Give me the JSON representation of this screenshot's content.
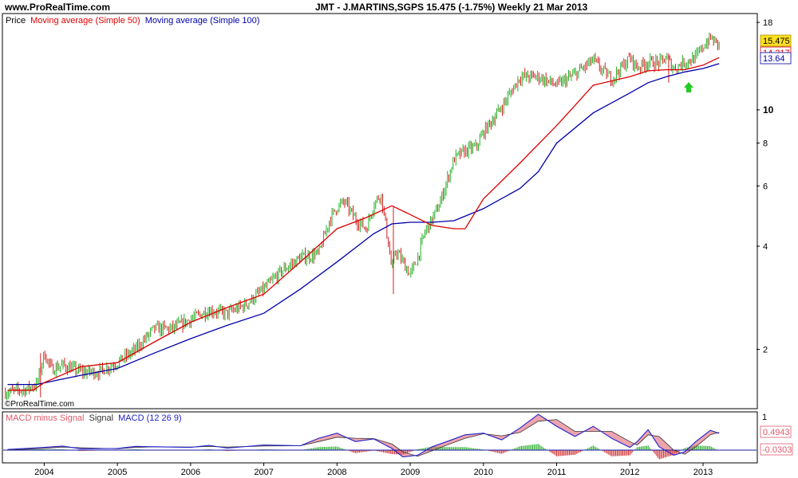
{
  "header": {
    "site": "www.ProRealTime.com",
    "title": "JMT - J.MARTINS,SGPS    15.475 (-1.75%)    Weekly  21 Mar 2013"
  },
  "watermark": "©ProRealTime.com",
  "colors": {
    "price_up": "#22b022",
    "price_down": "#d02020",
    "ma50": "#dd0000",
    "ma100": "#0000aa",
    "macd_line": "#2222cc",
    "signal_fill": "#e05a6a",
    "hist_up": "#22aa22",
    "hist_down": "#cc2222",
    "zero_line": "#1a1aa6",
    "last_price_bg": "#ffe020",
    "arrow": "#22cc22"
  },
  "chart_data": [
    {
      "type": "candlestick",
      "panel": "price",
      "scale": "log",
      "ylim": [
        1.35,
        19
      ],
      "legend": [
        "Price",
        "Moving average (Simple 50)",
        "Moving average (Simple 100)"
      ],
      "y_ticks": [
        "18",
        "10",
        "8",
        "6",
        "4",
        "2"
      ],
      "x_ticks": [
        "2004",
        "2005",
        "2006",
        "2007",
        "2008",
        "2009",
        "2010",
        "2011",
        "2012",
        "2013"
      ],
      "last_values": {
        "price": "15.475",
        "ma50": "14.217",
        "ma100": "13.64"
      },
      "annotation": "up-arrow",
      "series": [
        {
          "name": "Price",
          "x": [
            2003.5,
            2003.75,
            2003.9,
            2004.0,
            2004.1,
            2004.25,
            2004.5,
            2004.75,
            2005.0,
            2005.25,
            2005.5,
            2005.75,
            2006.0,
            2006.25,
            2006.5,
            2006.75,
            2007.0,
            2007.25,
            2007.5,
            2007.75,
            2007.9,
            2008.0,
            2008.1,
            2008.25,
            2008.4,
            2008.5,
            2008.6,
            2008.7,
            2008.75,
            2008.8,
            2008.9,
            2009.0,
            2009.1,
            2009.2,
            2009.3,
            2009.4,
            2009.5,
            2009.6,
            2009.75,
            2009.9,
            2010.0,
            2010.25,
            2010.4,
            2010.5,
            2010.75,
            2011.0,
            2011.25,
            2011.5,
            2011.6,
            2011.75,
            2012.0,
            2012.1,
            2012.25,
            2012.4,
            2012.5,
            2012.6,
            2012.75,
            2012.9,
            2013.0,
            2013.1,
            2013.22
          ],
          "values": [
            1.5,
            1.53,
            1.58,
            1.95,
            1.75,
            1.8,
            1.72,
            1.72,
            1.83,
            2.0,
            2.3,
            2.3,
            2.45,
            2.6,
            2.55,
            2.7,
            3.0,
            3.4,
            3.7,
            3.8,
            4.8,
            5.2,
            5.4,
            4.8,
            4.5,
            5.3,
            5.7,
            4.1,
            3.4,
            3.9,
            3.6,
            3.3,
            3.7,
            4.4,
            4.8,
            5.3,
            6.2,
            7.2,
            7.6,
            7.8,
            8.6,
            10.2,
            11.5,
            12.5,
            12.5,
            11.8,
            12.7,
            14.0,
            13.2,
            12.3,
            14.2,
            13.3,
            13.8,
            13.7,
            14.2,
            13.2,
            13.8,
            14.2,
            15.3,
            16.2,
            15.475
          ]
        },
        {
          "name": "Moving average (Simple 50)",
          "x": [
            2003.5,
            2003.85,
            2004.0,
            2004.5,
            2005.0,
            2005.5,
            2006.0,
            2006.5,
            2007.0,
            2007.5,
            2008.0,
            2008.4,
            2008.75,
            2009.0,
            2009.3,
            2009.6,
            2009.75,
            2010.0,
            2010.5,
            2011.0,
            2011.25,
            2011.5,
            2012.0,
            2012.25,
            2012.5,
            2012.75,
            2013.0,
            2013.22
          ],
          "values": [
            1.52,
            1.52,
            1.6,
            1.78,
            1.83,
            2.1,
            2.4,
            2.65,
            2.9,
            3.6,
            4.5,
            4.85,
            5.25,
            4.95,
            4.6,
            4.5,
            4.5,
            5.5,
            7.0,
            9.0,
            10.3,
            11.8,
            12.5,
            13.0,
            13.1,
            13.1,
            13.5,
            14.217
          ]
        },
        {
          "name": "Moving average (Simple 100)",
          "x": [
            2003.5,
            2003.9,
            2004.2,
            2004.5,
            2005.0,
            2005.5,
            2006.0,
            2006.5,
            2007.0,
            2007.5,
            2008.0,
            2008.5,
            2008.75,
            2009.0,
            2009.3,
            2009.6,
            2010.0,
            2010.5,
            2010.75,
            2011.0,
            2011.5,
            2012.0,
            2012.25,
            2012.5,
            2012.75,
            2013.0,
            2013.22
          ],
          "values": [
            1.58,
            1.58,
            1.63,
            1.68,
            1.76,
            1.95,
            2.15,
            2.35,
            2.55,
            3.0,
            3.6,
            4.35,
            4.65,
            4.7,
            4.7,
            4.75,
            5.15,
            5.9,
            6.6,
            8.0,
            9.8,
            11.2,
            12.0,
            12.5,
            12.9,
            13.2,
            13.64
          ]
        }
      ]
    },
    {
      "type": "area",
      "panel": "macd",
      "ylim": [
        -0.35,
        1.1
      ],
      "legend": [
        "MACD minus Signal",
        "Signal",
        "MACD (12 26 9)"
      ],
      "y_ticks": [
        "1"
      ],
      "last_values": {
        "macd": "0.4943",
        "hist": "-0.0303"
      },
      "x": [
        2003.5,
        2004.0,
        2004.25,
        2004.5,
        2005.0,
        2005.25,
        2005.5,
        2006.0,
        2006.25,
        2006.5,
        2007.0,
        2007.5,
        2007.75,
        2008.0,
        2008.25,
        2008.5,
        2008.75,
        2008.9,
        2009.1,
        2009.3,
        2009.5,
        2009.75,
        2010.0,
        2010.25,
        2010.5,
        2010.75,
        2011.0,
        2011.25,
        2011.5,
        2011.75,
        2012.0,
        2012.1,
        2012.25,
        2012.4,
        2012.6,
        2012.75,
        2012.9,
        2013.1,
        2013.22
      ],
      "series": [
        {
          "name": "MACD (12 26 9)",
          "values": [
            0.02,
            0.08,
            0.12,
            0.04,
            0.05,
            0.11,
            0.1,
            0.08,
            0.14,
            0.06,
            0.15,
            0.13,
            0.35,
            0.5,
            0.25,
            0.33,
            0.05,
            -0.2,
            -0.15,
            0.1,
            0.25,
            0.45,
            0.5,
            0.3,
            0.65,
            1.05,
            0.7,
            0.4,
            0.7,
            0.35,
            0.08,
            0.25,
            0.6,
            0.1,
            -0.15,
            -0.05,
            0.25,
            0.58,
            0.4943
          ]
        },
        {
          "name": "Signal",
          "values": [
            0.0,
            0.05,
            0.09,
            0.07,
            0.04,
            0.08,
            0.1,
            0.09,
            0.11,
            0.09,
            0.12,
            0.13,
            0.25,
            0.38,
            0.35,
            0.34,
            0.18,
            -0.05,
            -0.18,
            -0.02,
            0.15,
            0.35,
            0.48,
            0.42,
            0.52,
            0.85,
            0.9,
            0.55,
            0.55,
            0.55,
            0.25,
            0.15,
            0.45,
            0.4,
            0.0,
            -0.12,
            0.1,
            0.45,
            0.52
          ]
        }
      ]
    }
  ]
}
